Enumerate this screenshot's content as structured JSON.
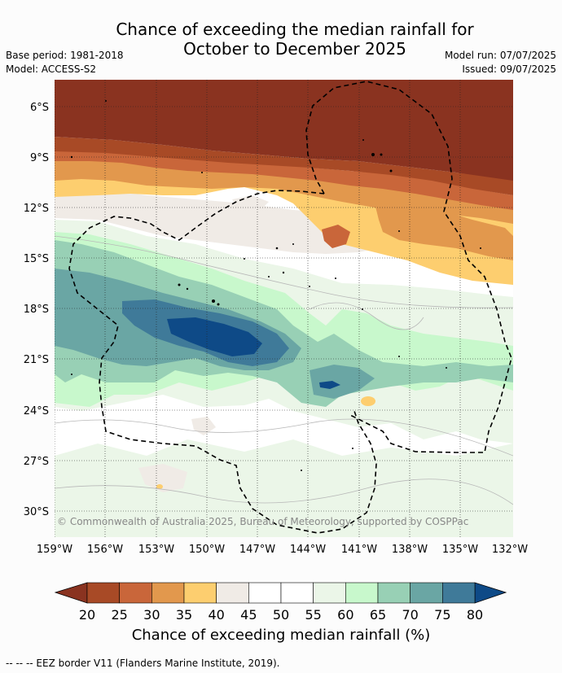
{
  "title": {
    "line1": "Chance of exceeding the median rainfall for",
    "line2": "October to December 2025"
  },
  "meta_left": {
    "base_period": "Base period: 1981-2018",
    "model": "Model: ACCESS-S2"
  },
  "meta_right": {
    "model_run": "Model run: 07/07/2025",
    "issued": "Issued: 09/07/2025"
  },
  "map": {
    "lat_labels": [
      "6°S",
      "9°S",
      "12°S",
      "15°S",
      "18°S",
      "21°S",
      "24°S",
      "27°S",
      "30°S"
    ],
    "lon_labels": [
      "159°W",
      "156°W",
      "153°W",
      "150°W",
      "147°W",
      "144°W",
      "141°W",
      "138°W",
      "135°W",
      "132°W"
    ],
    "copyright": "© Commonwealth of Australia 2025, Bureau of Meteorology, supported by COSPPac"
  },
  "colorbar": {
    "ticks": [
      "20",
      "25",
      "30",
      "35",
      "40",
      "45",
      "50",
      "55",
      "60",
      "65",
      "70",
      "75",
      "80"
    ],
    "colors": [
      "#a84a26",
      "#c9663a",
      "#e2984d",
      "#fdce6f",
      "#f0ebe6",
      "#ffffff",
      "#ffffff",
      "#ebf6e8",
      "#c8f8cc",
      "#98d0b5",
      "#6aa6a4",
      "#3f7a99"
    ],
    "under_color": "#8a3320",
    "over_color": "#0e4a87",
    "label": "Chance of exceeding median rainfall (%)"
  },
  "footer": "--  --  -- EEZ border V11 (Flanders Marine Institute, 2019)."
}
